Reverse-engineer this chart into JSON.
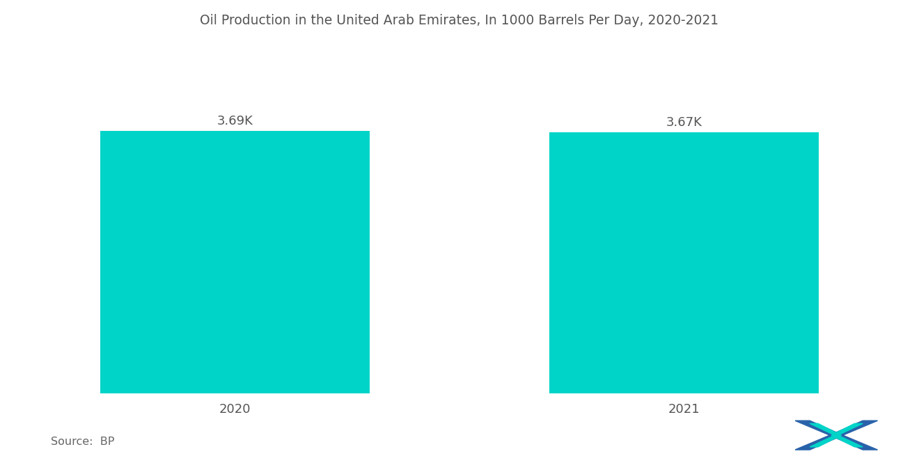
{
  "title": "Oil Production in the United Arab Emirates, In 1000 Barrels Per Day, 2020-2021",
  "categories": [
    "2020",
    "2021"
  ],
  "values": [
    3690,
    3670
  ],
  "value_labels": [
    "3.69K",
    "3.67K"
  ],
  "bar_color": "#00D4C8",
  "background_color": "#ffffff",
  "title_fontsize": 13.5,
  "label_fontsize": 13,
  "tick_fontsize": 13,
  "source_text": "Source:  BP",
  "ylim": [
    0,
    4600
  ],
  "bar_width": 0.6,
  "xlim": [
    -0.5,
    1.5
  ]
}
